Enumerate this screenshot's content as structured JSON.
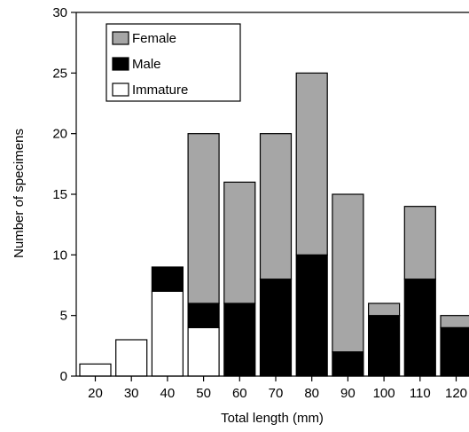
{
  "chart_data": {
    "type": "bar",
    "stacked": true,
    "title": "",
    "xlabel": "Total length (mm)",
    "ylabel": "Number of specimens",
    "ylim": [
      0,
      30
    ],
    "yticks": [
      0,
      5,
      10,
      15,
      20,
      25,
      30
    ],
    "grid": false,
    "legend_position": "top-left",
    "categories": [
      "20",
      "30",
      "40",
      "50",
      "60",
      "70",
      "80",
      "90",
      "100",
      "110",
      "120"
    ],
    "series": [
      {
        "name": "Immature",
        "color": "#ffffff",
        "values": [
          1,
          3,
          7,
          4,
          0,
          0,
          0,
          0,
          0,
          0,
          0
        ]
      },
      {
        "name": "Male",
        "color": "#000000",
        "values": [
          0,
          0,
          2,
          2,
          6,
          8,
          10,
          2,
          5,
          8,
          4
        ]
      },
      {
        "name": "Female",
        "color": "#a6a6a6",
        "values": [
          0,
          0,
          0,
          14,
          10,
          12,
          15,
          13,
          1,
          6,
          1
        ]
      }
    ],
    "legend_order": [
      "Female",
      "Male",
      "Immature"
    ]
  }
}
